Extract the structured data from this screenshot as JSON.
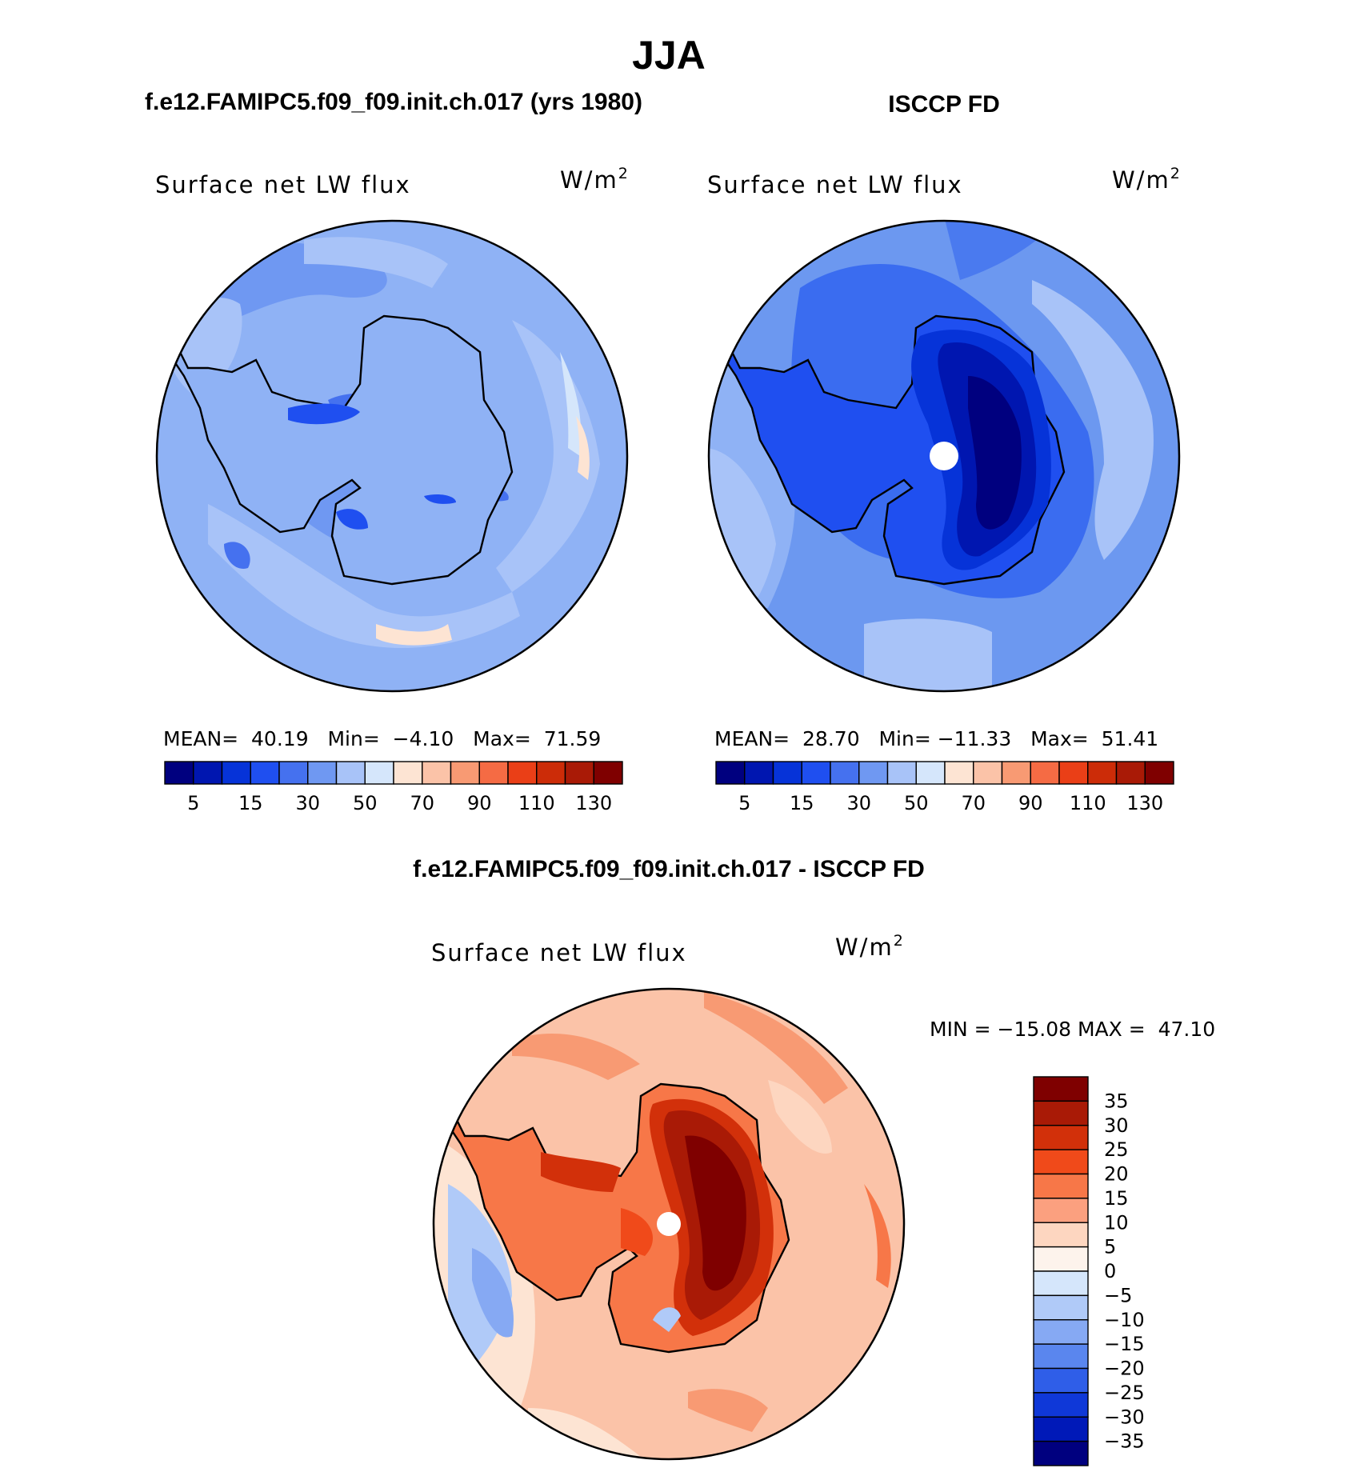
{
  "title": "JJA",
  "panels": [
    {
      "id": "model",
      "case_title": "f.e12.FAMIPC5.f09_f09.init.ch.017 (yrs 1980)",
      "variable": "Surface net LW flux",
      "units_base": "W/m",
      "units_exp": "2",
      "stats": {
        "mean_label": "MEAN=",
        "mean": "40.19",
        "min_label": "Min=",
        "min": "−4.10",
        "max_label": "Max=",
        "max": "71.59"
      },
      "background_color": "#8fb2f5"
    },
    {
      "id": "obs",
      "case_title": "ISCCP FD",
      "variable": "Surface net LW flux",
      "units_base": "W/m",
      "units_exp": "2",
      "stats": {
        "mean_label": "MEAN=",
        "mean": "28.70",
        "min_label": "Min=",
        "min": "−11.33",
        "max_label": "Max=",
        "max": "51.41"
      },
      "background_color": "#6c98f0"
    },
    {
      "id": "diff",
      "case_title": "f.e12.FAMIPC5.f09_f09.init.ch.017 - ISCCP FD",
      "variable": "Surface net LW flux",
      "units_base": "W/m",
      "units_exp": "2",
      "stats": {
        "min_label": "MIN =",
        "min": "−15.08",
        "max_label": "MAX =",
        "max": "47.10"
      },
      "background_color": "#fbc3a8"
    }
  ],
  "chart_data": [
    {
      "type": "heatmap",
      "projection": "south polar stereographic",
      "title": "Surface net LW flux",
      "subtitle": "f.e12.FAMIPC5.f09_f09.init.ch.017 (yrs 1980)",
      "units": "W/m2",
      "mean": 40.19,
      "min": -4.1,
      "max": 71.59,
      "colorbar": {
        "levels": [
          5,
          10,
          15,
          20,
          30,
          40,
          50,
          60,
          70,
          80,
          90,
          100,
          110,
          120,
          130
        ],
        "tick_labels": [
          "5",
          "15",
          "30",
          "50",
          "70",
          "90",
          "110",
          "130"
        ],
        "colors": [
          "#00007f",
          "#0016b0",
          "#0633d8",
          "#1f4ff0",
          "#4571ef",
          "#6f98f2",
          "#a8c3f8",
          "#d5e6fb",
          "#fde4d3",
          "#fbc3a8",
          "#f89a73",
          "#f56b44",
          "#ea3f17",
          "#cc2c08",
          "#a91a06",
          "#7f0000"
        ]
      }
    },
    {
      "type": "heatmap",
      "projection": "south polar stereographic",
      "title": "Surface net LW flux",
      "subtitle": "ISCCP FD",
      "units": "W/m2",
      "mean": 28.7,
      "min": -11.33,
      "max": 51.41,
      "colorbar": {
        "levels": [
          5,
          10,
          15,
          20,
          30,
          40,
          50,
          60,
          70,
          80,
          90,
          100,
          110,
          120,
          130
        ],
        "tick_labels": [
          "5",
          "15",
          "30",
          "50",
          "70",
          "90",
          "110",
          "130"
        ],
        "colors": [
          "#00007f",
          "#0016b0",
          "#0633d8",
          "#1f4ff0",
          "#4571ef",
          "#6f98f2",
          "#a8c3f8",
          "#d5e6fb",
          "#fde4d3",
          "#fbc3a8",
          "#f89a73",
          "#f56b44",
          "#ea3f17",
          "#cc2c08",
          "#a91a06",
          "#7f0000"
        ]
      }
    },
    {
      "type": "heatmap",
      "projection": "south polar stereographic",
      "title": "Surface net LW flux",
      "subtitle": "f.e12.FAMIPC5.f09_f09.init.ch.017 - ISCCP FD",
      "units": "W/m2",
      "min": -15.08,
      "max": 47.1,
      "colorbar": {
        "orientation": "vertical",
        "levels": [
          35,
          30,
          25,
          20,
          15,
          10,
          5,
          0,
          -5,
          -10,
          -15,
          -20,
          -25,
          -30,
          -35
        ],
        "tick_labels": [
          "35",
          "30",
          "25",
          "20",
          "15",
          "10",
          "5",
          "0",
          "−5",
          "−10",
          "−15",
          "−20",
          "−25",
          "−30",
          "−35"
        ],
        "colors": [
          "#7f0000",
          "#a91a06",
          "#d2300a",
          "#f04a1a",
          "#f77748",
          "#fba07f",
          "#fdd6c0",
          "#fdf3ec",
          "#d5e6fb",
          "#b0caf8",
          "#86a9f3",
          "#5a86ee",
          "#2f5ee8",
          "#0f38d8",
          "#0019b8",
          "#00007f"
        ]
      }
    }
  ]
}
